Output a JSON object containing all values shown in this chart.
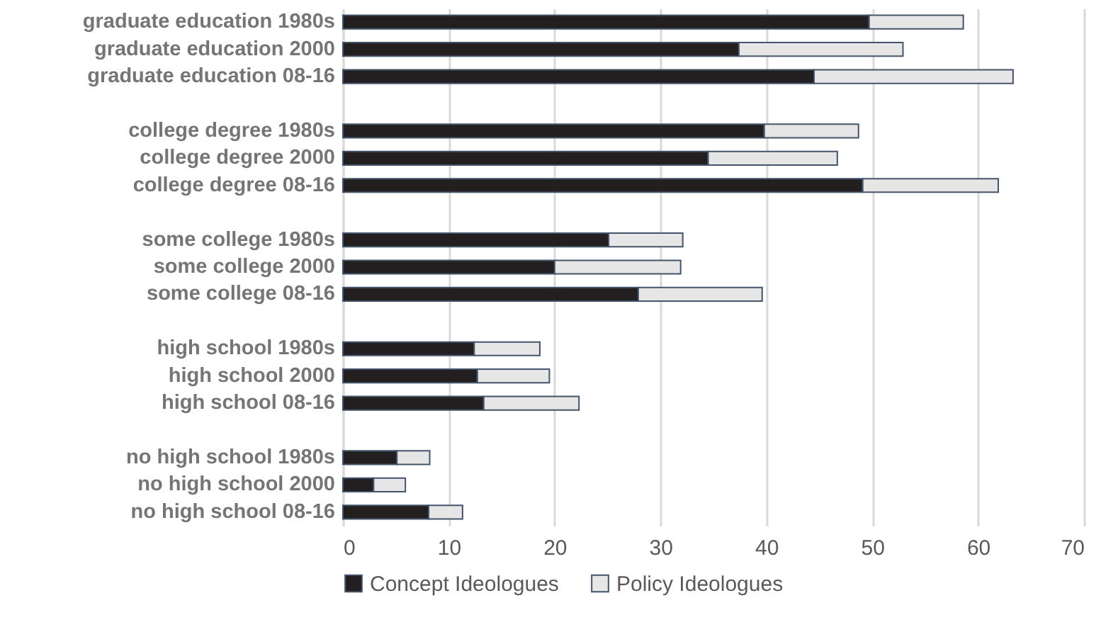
{
  "chart_data": {
    "type": "bar",
    "orientation": "horizontal",
    "stacked": true,
    "categories": [
      "graduate education 1980s",
      "graduate education 2000",
      "graduate education 08-16",
      null,
      "college degree 1980s",
      "college degree 2000",
      "college degree 08-16",
      null,
      "some college 1980s",
      "some college 2000",
      "some college 08-16",
      null,
      "high school 1980s",
      "high school 2000",
      "high school 08-16",
      null,
      "no high school 1980s",
      "no high school 2000",
      "no high school  08-16"
    ],
    "series": [
      {
        "name": "Concept Ideologues",
        "color": "#231f20",
        "values": [
          49.7,
          37.4,
          44.5,
          null,
          39.8,
          34.5,
          49.1,
          null,
          25.1,
          20.0,
          27.9,
          null,
          12.4,
          12.7,
          13.3,
          null,
          5.1,
          2.9,
          8.1
        ]
      },
      {
        "name": "Policy Ideologues",
        "color": "#e7e6e6",
        "values": [
          8.9,
          15.5,
          18.8,
          null,
          8.9,
          12.2,
          12.8,
          null,
          7.0,
          11.9,
          11.7,
          null,
          6.2,
          6.8,
          9.0,
          null,
          3.1,
          3.0,
          3.2
        ]
      }
    ],
    "xlim": [
      0,
      70
    ],
    "xticks": [
      0,
      10,
      20,
      30,
      40,
      50,
      60,
      70
    ],
    "grid": "x",
    "legend": "bottom"
  }
}
